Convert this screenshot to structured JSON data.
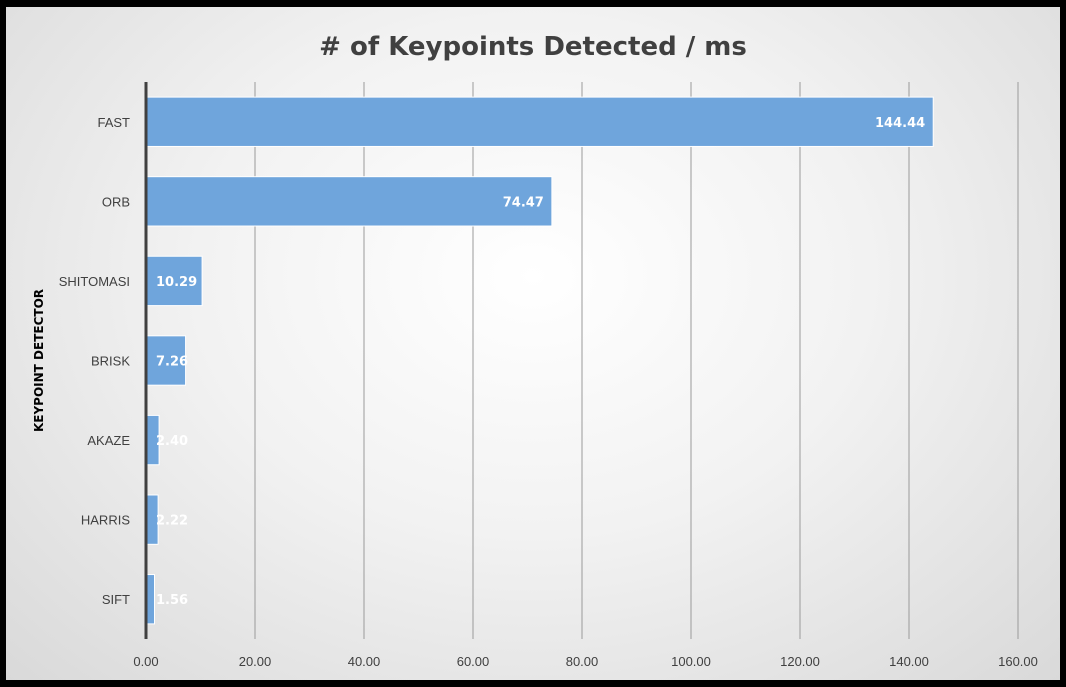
{
  "chart_data": {
    "type": "bar",
    "orientation": "horizontal",
    "title": "# of Keypoints Detected / ms",
    "ylabel": "KEYPOINT DETECTOR",
    "xlabel": "",
    "categories": [
      "FAST",
      "ORB",
      "SHITOMASI",
      "BRISK",
      "AKAZE",
      "HARRIS",
      "SIFT"
    ],
    "values": [
      144.44,
      74.47,
      10.29,
      7.26,
      2.4,
      2.22,
      1.56
    ],
    "value_labels": [
      "144.44",
      "74.47",
      "10.29",
      "7.26",
      "2.40",
      "2.22",
      "1.56"
    ],
    "xlim": [
      0,
      160
    ],
    "xticks": [
      0,
      20,
      40,
      60,
      80,
      100,
      120,
      140,
      160
    ],
    "xtick_labels": [
      "0.00",
      "20.00",
      "40.00",
      "60.00",
      "80.00",
      "100.00",
      "120.00",
      "140.00",
      "160.00"
    ],
    "grid": true,
    "legend": "none",
    "bar_color": "#6fa5dc",
    "bar_border_color": "#ffffff"
  }
}
